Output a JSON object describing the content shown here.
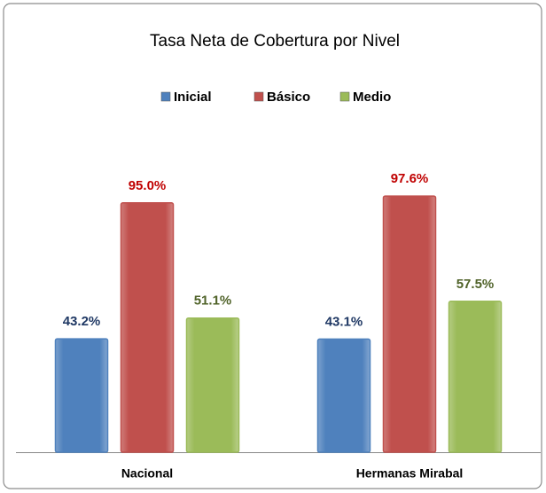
{
  "chart_data": {
    "type": "bar",
    "title": "Tasa Neta de Cobertura por Nivel",
    "categories": [
      "Nacional",
      "Hermanas Mirabal"
    ],
    "ylim": [
      0,
      100
    ],
    "legend": "top",
    "series": [
      {
        "name": "Inicial",
        "color": "#4f81bd",
        "label_color": "#1f3864",
        "values": [
          43.2,
          43.1
        ],
        "value_labels": [
          "43.2%",
          "43.1%"
        ]
      },
      {
        "name": "Básico",
        "color": "#c0504d",
        "label_color": "#c00000",
        "values": [
          95.0,
          97.6
        ],
        "value_labels": [
          "95.0%",
          "97.6%"
        ]
      },
      {
        "name": "Medio",
        "color": "#9bbb59",
        "label_color": "#4f6228",
        "values": [
          51.1,
          57.5
        ],
        "value_labels": [
          "51.1%",
          "57.5%"
        ]
      }
    ]
  }
}
